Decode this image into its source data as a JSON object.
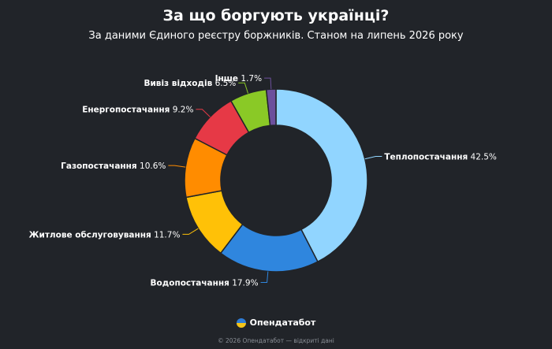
{
  "header": {
    "title": "За що боргують українці?",
    "subtitle": "За даними Єдиного реєстру боржників. Станом на липень 2026 року"
  },
  "chart_data": {
    "type": "pie",
    "style": "donut",
    "title": "За що боргують українці?",
    "subtitle": "За даними Єдиного реєстру боржників. Станом на липень 2026 року",
    "unit": "%",
    "slices": [
      {
        "name": "Теплопостачання",
        "value": 42.5,
        "color": "#91d5ff"
      },
      {
        "name": "Водопостачання",
        "value": 17.9,
        "color": "#2f86de"
      },
      {
        "name": "Житлове обслуговування",
        "value": 11.7,
        "color": "#ffc107"
      },
      {
        "name": "Газопостачання",
        "value": 10.6,
        "color": "#ff8c00"
      },
      {
        "name": "Енергопостачання",
        "value": 9.2,
        "color": "#e63946"
      },
      {
        "name": "Вивіз відходів",
        "value": 6.5,
        "color": "#8ac926"
      },
      {
        "name": "Інше",
        "value": 1.7,
        "color": "#6c4f9c"
      }
    ],
    "start_angle_deg": 0,
    "direction": "clockwise",
    "legend": "none"
  },
  "brand": {
    "name": "Опендатабот"
  },
  "footer": {
    "text": "© 2026 Опендатабот — відкриті дані"
  }
}
